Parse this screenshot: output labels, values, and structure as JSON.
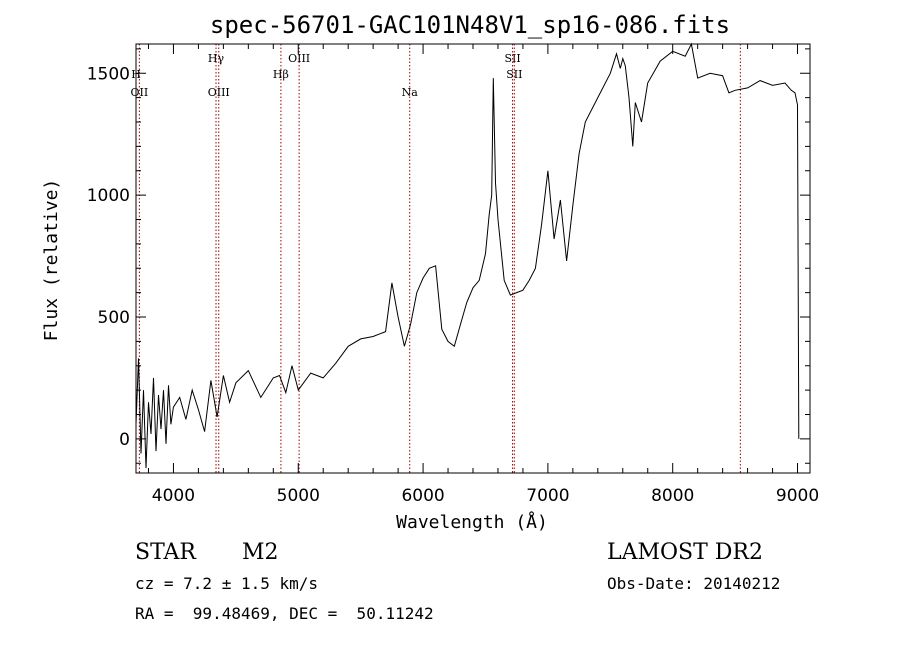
{
  "chart_data": {
    "type": "line",
    "title": "spec-56701-GAC101N48V1_sp16-086.fits",
    "xlabel": "Wavelength (Å)",
    "ylabel": "Flux (relative)",
    "xlim": [
      3700,
      9100
    ],
    "ylim": [
      -140,
      1620
    ],
    "xticks": [
      4000,
      5000,
      6000,
      7000,
      8000,
      9000
    ],
    "yticks": [
      0,
      500,
      1000,
      1500
    ],
    "grid": false,
    "series": [
      {
        "x": [
          3700,
          3720,
          3740,
          3760,
          3780,
          3800,
          3820,
          3840,
          3860,
          3880,
          3900,
          3920,
          3940,
          3960,
          3980,
          4000,
          4050,
          4100,
          4150,
          4200,
          4250,
          4300,
          4350,
          4400,
          4450,
          4500,
          4600,
          4700,
          4800,
          4850,
          4900,
          4950,
          5000,
          5100,
          5200,
          5300,
          5400,
          5500,
          5600,
          5700,
          5750,
          5800,
          5850,
          5900,
          5950,
          6000,
          6050,
          6100,
          6150,
          6200,
          6250,
          6300,
          6350,
          6400,
          6450,
          6500,
          6530,
          6550,
          6563,
          6580,
          6600,
          6650,
          6700,
          6750,
          6800,
          6850,
          6900,
          6950,
          7000,
          7050,
          7100,
          7150,
          7200,
          7250,
          7300,
          7400,
          7500,
          7550,
          7580,
          7600,
          7620,
          7650,
          7680,
          7700,
          7750,
          7800,
          7900,
          8000,
          8100,
          8150,
          8200,
          8300,
          8400,
          8450,
          8500,
          8600,
          8700,
          8800,
          8900,
          8950,
          8980,
          9000,
          9010
        ],
        "y": [
          60,
          330,
          -60,
          200,
          -120,
          150,
          20,
          250,
          -50,
          180,
          40,
          200,
          -20,
          220,
          60,
          130,
          170,
          80,
          200,
          120,
          30,
          240,
          90,
          260,
          150,
          230,
          280,
          170,
          250,
          260,
          190,
          300,
          200,
          270,
          250,
          310,
          380,
          410,
          420,
          440,
          640,
          500,
          380,
          470,
          600,
          660,
          700,
          710,
          450,
          400,
          380,
          470,
          560,
          620,
          650,
          760,
          920,
          1000,
          1480,
          1050,
          900,
          650,
          590,
          600,
          610,
          650,
          700,
          880,
          1100,
          820,
          980,
          730,
          960,
          1170,
          1300,
          1400,
          1500,
          1580,
          1520,
          1560,
          1530,
          1400,
          1200,
          1380,
          1300,
          1460,
          1550,
          1590,
          1570,
          1620,
          1480,
          1500,
          1490,
          1420,
          1430,
          1440,
          1470,
          1450,
          1460,
          1430,
          1420,
          1370,
          0
        ]
      }
    ],
    "lines": [
      {
        "label": "OII",
        "x": 3727
      },
      {
        "label": "OIII",
        "x": 4363
      },
      {
        "label": "Hγ",
        "x": 4341
      },
      {
        "label": "Hβ",
        "x": 4861
      },
      {
        "label": "OIII",
        "x": 5007
      },
      {
        "label": "Na",
        "x": 5893
      },
      {
        "label": "SII",
        "x": 6717
      },
      {
        "label": "SII",
        "x": 6731
      },
      {
        "label": "H",
        "x": 3700
      },
      {
        "label": "",
        "x": 8542
      }
    ]
  },
  "info": {
    "class": "STAR",
    "subclass": "M2",
    "cz": "cz = 7.2 ± 1.5 km/s",
    "coords": "RA =  99.48469, DEC =  50.11242",
    "survey": "LAMOST DR2",
    "obsdate": "Obs-Date: 20140212"
  },
  "colors": {
    "line": "#000000",
    "marker": "#a00000",
    "axis": "#000000"
  }
}
